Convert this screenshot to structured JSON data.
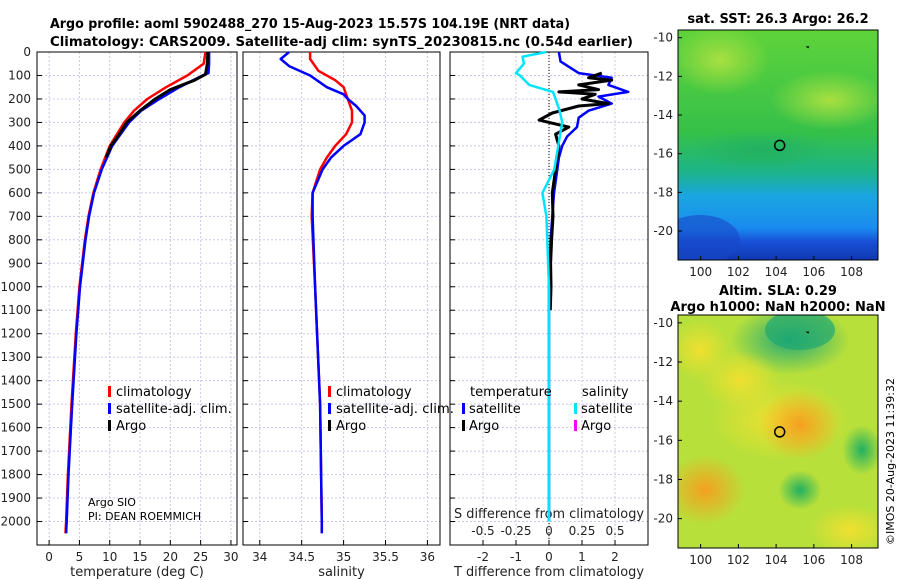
{
  "title_lines": [
    "Argo profile: aoml 5902488_270 15-Aug-2023 15.57S 104.19E (NRT data)",
    "Climatology: CARS2009. Satellite-adj clim: synTS_20230815.nc (0.54d earlier)"
  ],
  "credit": "©IMOS 20-Aug-2023 11:39:32",
  "colors": {
    "climatology": "#ff0000",
    "satellite": "#0000ff",
    "argo": "#000000",
    "sal_satellite": "#00e5ff",
    "sal_argo": "#ff00ff"
  },
  "chart_data": [
    {
      "type": "line",
      "name": "temperature-profile",
      "xlabel": "temperature (deg C)",
      "ylabel": "",
      "xlim": [
        -2,
        31
      ],
      "ylim": [
        2100,
        0
      ],
      "xticks": [
        0,
        5,
        10,
        15,
        20,
        25,
        30
      ],
      "yticks": [
        0,
        100,
        200,
        300,
        400,
        500,
        600,
        700,
        800,
        900,
        1000,
        1100,
        1200,
        1300,
        1400,
        1500,
        1600,
        1700,
        1800,
        1900,
        2000
      ],
      "grid": true,
      "legend": {
        "placement": "bottom-right",
        "entries": [
          "climatology",
          "satellite-adj. clim.",
          "Argo"
        ]
      },
      "annotations": [
        "Argo SIO",
        "PI: DEAN ROEMMICH"
      ],
      "series": [
        {
          "name": "climatology",
          "color": "#ff0000",
          "depth": [
            0,
            50,
            100,
            150,
            200,
            250,
            300,
            400,
            500,
            600,
            700,
            800,
            1000,
            1200,
            1500,
            1800,
            2000,
            2050
          ],
          "values": [
            25.8,
            25.5,
            22.8,
            19.3,
            16.2,
            14.0,
            12.4,
            10.0,
            8.5,
            7.3,
            6.5,
            5.9,
            5.0,
            4.4,
            3.7,
            3.1,
            2.8,
            2.7
          ]
        },
        {
          "name": "satellite-adj. clim.",
          "color": "#0000ff",
          "depth": [
            0,
            50,
            90,
            100,
            150,
            200,
            250,
            300,
            400,
            500,
            600,
            700,
            800,
            1000,
            1200,
            1500,
            1800,
            2000,
            2050
          ],
          "values": [
            26.4,
            26.4,
            26.3,
            25.3,
            21.5,
            18.2,
            15.2,
            13.2,
            10.4,
            8.7,
            7.4,
            6.6,
            6.0,
            5.1,
            4.5,
            3.8,
            3.2,
            2.9,
            2.8
          ]
        },
        {
          "name": "Argo",
          "color": "#000000",
          "depth": [
            0,
            50,
            95,
            120,
            160,
            200,
            250,
            300,
            350,
            400,
            450
          ],
          "values": [
            26.2,
            26.1,
            25.8,
            24.0,
            20.0,
            17.5,
            15.0,
            12.8,
            11.6,
            10.2,
            9.4
          ]
        }
      ]
    },
    {
      "type": "line",
      "name": "salinity-profile",
      "xlabel": "salinity",
      "xlim": [
        33.8,
        36.15
      ],
      "ylim": [
        2100,
        0
      ],
      "xticks": [
        34,
        34.5,
        35,
        35.5,
        36
      ],
      "grid": true,
      "legend": {
        "placement": "bottom-right",
        "entries": [
          "climatology",
          "satellite-adj. clim.",
          "Argo"
        ]
      },
      "series": [
        {
          "name": "climatology",
          "color": "#ff0000",
          "depth": [
            0,
            30,
            80,
            120,
            150,
            200,
            250,
            300,
            350,
            400,
            450,
            500,
            600,
            700,
            1000,
            1500,
            2000,
            2050
          ],
          "values": [
            34.6,
            34.6,
            34.7,
            34.9,
            35.0,
            35.05,
            35.1,
            35.1,
            35.03,
            34.9,
            34.8,
            34.72,
            34.63,
            34.62,
            34.66,
            34.72,
            34.74,
            34.74
          ]
        },
        {
          "name": "satellite-adj. clim.",
          "color": "#0000ff",
          "depth": [
            0,
            30,
            60,
            100,
            150,
            180,
            200,
            230,
            270,
            300,
            350,
            400,
            450,
            500,
            600,
            700,
            1000,
            1500,
            2000,
            2050
          ],
          "values": [
            34.35,
            34.25,
            34.35,
            34.6,
            34.8,
            35.0,
            35.05,
            35.15,
            35.25,
            35.25,
            35.2,
            35.0,
            34.85,
            34.75,
            34.63,
            34.63,
            34.66,
            34.72,
            34.74,
            34.74
          ]
        }
      ]
    },
    {
      "type": "line",
      "name": "difference-profile",
      "xlabel": "T difference from climatology",
      "x2label": "S difference from climatology",
      "xlim": [
        -3,
        3
      ],
      "ylim": [
        2100,
        0
      ],
      "xticks": [
        -2,
        -1,
        0,
        1,
        2
      ],
      "x2ticks": [
        "-0.5",
        "-0.25",
        "0",
        "0.25",
        "0.5"
      ],
      "grid": true,
      "legend": {
        "placement": "bottom",
        "temperature_title": "temperature",
        "salinity_title": "salinity",
        "entries": [
          "satellite",
          "Argo",
          "satellite",
          "Argo"
        ]
      },
      "series": [
        {
          "name": "temperature satellite",
          "color": "#0000ff",
          "depth": [
            0,
            40,
            90,
            110,
            140,
            170,
            190,
            220,
            250,
            280,
            320,
            360,
            400,
            450,
            500,
            600,
            700,
            800,
            1000,
            1500,
            2000
          ],
          "values": [
            0.3,
            0.35,
            0.9,
            1.9,
            1.8,
            2.4,
            1.5,
            1.9,
            1.2,
            0.9,
            0.85,
            0.55,
            0.4,
            0.3,
            0.25,
            0.15,
            0.1,
            0.05,
            0.0,
            0.0,
            0.0
          ]
        },
        {
          "name": "temperature Argo",
          "color": "#000000",
          "depth": [
            90,
            110,
            120,
            140,
            160,
            170,
            180,
            200,
            220,
            230,
            260,
            290,
            320,
            350,
            400,
            450,
            500,
            600,
            700,
            800,
            900,
            1000,
            1100
          ],
          "values": [
            1.6,
            1.2,
            1.9,
            0.9,
            1.5,
            0.3,
            1.4,
            1.0,
            1.8,
            0.9,
            0.1,
            -0.3,
            0.6,
            0.2,
            0.3,
            0.25,
            0.2,
            0.1,
            0.12,
            0.08,
            0.05,
            0.06,
            0.04
          ]
        },
        {
          "name": "salinity satellite",
          "color": "#00e5ff",
          "depth": [
            0,
            20,
            50,
            90,
            100,
            140,
            170,
            200,
            250,
            300,
            400,
            500,
            600,
            700,
            1000,
            1500,
            2000
          ],
          "values": [
            -0.02,
            -0.2,
            -0.19,
            -0.25,
            -0.22,
            -0.15,
            0.03,
            0.05,
            0.08,
            0.1,
            0.07,
            0.04,
            -0.05,
            -0.02,
            0.0,
            0.0,
            0.0
          ]
        }
      ]
    },
    {
      "type": "heatmap",
      "name": "sst-map",
      "title": "sat. SST: 26.3 Argo: 26.2",
      "xlim": [
        98.8,
        109.4
      ],
      "ylim": [
        -21.5,
        -9.6
      ],
      "xticks": [
        100,
        102,
        104,
        106,
        108
      ],
      "yticks": [
        -10,
        -12,
        -14,
        -16,
        -18,
        -20
      ],
      "argo_position": [
        104.19,
        -15.57
      ]
    },
    {
      "type": "heatmap",
      "name": "sla-map",
      "title": "Altim. SLA: 0.29",
      "subtitle": "Argo h1000: NaN h2000: NaN",
      "xlim": [
        98.8,
        109.4
      ],
      "ylim": [
        -21.5,
        -9.6
      ],
      "xticks": [
        100,
        102,
        104,
        106,
        108
      ],
      "yticks": [
        -10,
        -12,
        -14,
        -16,
        -18,
        -20
      ],
      "argo_position": [
        104.19,
        -15.57
      ]
    }
  ]
}
